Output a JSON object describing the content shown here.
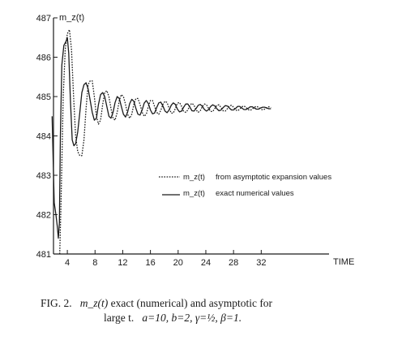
{
  "chart_data": {
    "type": "line",
    "ylabel": "m_z(t)",
    "xlabel": "TIME",
    "xlim": [
      2,
      35
    ],
    "ylim": [
      481,
      487
    ],
    "xticks": [
      4,
      8,
      12,
      16,
      20,
      24,
      28,
      32
    ],
    "yticks": [
      481,
      482,
      483,
      484,
      485,
      486,
      487
    ],
    "legend_position": "center-right",
    "series": [
      {
        "name": "m_z(t) from asymptotic expansion values",
        "style": "dotted",
        "x": [
          2.9,
          3.1,
          3.4,
          3.7,
          4.0,
          4.3,
          4.6,
          4.9,
          5.2,
          5.5,
          5.8,
          6.1,
          6.4,
          6.7,
          7.0,
          7.3,
          7.6,
          7.9,
          8.2,
          8.5,
          8.8,
          9.1,
          9.4,
          9.7,
          10.0,
          10.3,
          10.6,
          10.9,
          11.2,
          11.5,
          11.8,
          12.1,
          12.4,
          12.7,
          13.0,
          13.3,
          13.6,
          13.9,
          14.2,
          14.5,
          14.8,
          15.1,
          15.4,
          15.7,
          16.0,
          16.3,
          16.6,
          16.9,
          17.2,
          17.5,
          17.8,
          18.1,
          18.4,
          18.7,
          19.0,
          19.3,
          19.6,
          19.9,
          20.2,
          20.5,
          20.8,
          21.1,
          21.4,
          21.7,
          22.0,
          22.3,
          22.6,
          22.9,
          23.2,
          23.5,
          23.8,
          24.1,
          24.4,
          24.7,
          25.0,
          25.3,
          25.6,
          25.9,
          26.2,
          26.5,
          26.8,
          27.1,
          27.4,
          27.7,
          28.0,
          28.3,
          28.6,
          28.9,
          29.2,
          29.5,
          29.8,
          30.1,
          30.4,
          30.7,
          31.0,
          31.3,
          31.6,
          31.9,
          32.2,
          32.5,
          32.8,
          33.1,
          33.4
        ],
        "y": [
          481.0,
          482.4,
          485.0,
          486.2,
          486.6,
          486.7,
          486.2,
          485.0,
          484.0,
          483.6,
          483.5,
          483.5,
          483.9,
          484.7,
          485.3,
          485.4,
          485.4,
          485.0,
          484.5,
          484.3,
          484.4,
          484.8,
          485.1,
          485.15,
          485.0,
          484.7,
          484.45,
          484.4,
          484.6,
          484.9,
          485.05,
          485.0,
          484.8,
          484.55,
          484.45,
          484.55,
          484.8,
          484.95,
          484.95,
          484.8,
          484.6,
          484.5,
          484.55,
          484.75,
          484.9,
          484.9,
          484.75,
          484.6,
          484.55,
          484.65,
          484.8,
          484.88,
          484.85,
          484.7,
          484.58,
          484.58,
          484.7,
          484.83,
          484.85,
          484.75,
          484.62,
          484.6,
          484.66,
          484.78,
          484.83,
          484.78,
          484.66,
          484.6,
          484.64,
          484.75,
          484.81,
          484.79,
          484.7,
          484.62,
          484.62,
          484.7,
          484.78,
          484.79,
          484.72,
          484.64,
          484.63,
          484.69,
          484.76,
          484.78,
          484.73,
          484.66,
          484.64,
          484.68,
          484.74,
          484.76,
          484.73,
          484.67,
          484.65,
          484.68,
          484.73,
          484.75,
          484.73,
          484.69,
          484.66,
          484.68,
          484.72,
          484.74,
          484.72
        ]
      },
      {
        "name": "m_z(t) exact numerical values",
        "style": "solid",
        "x": [
          1.8,
          1.9,
          2.1,
          2.35,
          2.55,
          2.7,
          2.85,
          3.0,
          3.2,
          3.5,
          3.8,
          4.0,
          4.2,
          4.45,
          4.7,
          4.95,
          5.2,
          5.5,
          5.8,
          6.1,
          6.4,
          6.7,
          7.0,
          7.3,
          7.6,
          7.9,
          8.2,
          8.5,
          8.8,
          9.1,
          9.4,
          9.7,
          10.0,
          10.3,
          10.6,
          10.9,
          11.2,
          11.5,
          11.8,
          12.1,
          12.4,
          12.7,
          13.0,
          13.3,
          13.6,
          13.9,
          14.2,
          14.5,
          14.8,
          15.1,
          15.4,
          15.7,
          16.0,
          16.3,
          16.6,
          16.9,
          17.2,
          17.5,
          17.8,
          18.1,
          18.4,
          18.7,
          19.0,
          19.3,
          19.6,
          19.9,
          20.2,
          20.5,
          20.8,
          21.1,
          21.4,
          21.7,
          22.0,
          22.3,
          22.6,
          22.9,
          23.2,
          23.5,
          23.8,
          24.1,
          24.4,
          24.7,
          25.0,
          25.3,
          25.6,
          25.9,
          26.2,
          26.5,
          26.8,
          27.1,
          27.4,
          27.7,
          28.0,
          28.3,
          28.6,
          28.9,
          29.2,
          29.5,
          29.8,
          30.1,
          30.4,
          30.7,
          31.0,
          31.3,
          31.6,
          31.9,
          32.2,
          32.5,
          32.8,
          33.1,
          33.4
        ],
        "y": [
          484.5,
          483.8,
          482.3,
          482.0,
          481.7,
          481.4,
          481.8,
          484.0,
          485.8,
          486.3,
          486.4,
          486.5,
          486.1,
          484.9,
          483.9,
          483.75,
          483.8,
          484.1,
          484.6,
          485.1,
          485.3,
          485.35,
          485.2,
          484.9,
          484.6,
          484.4,
          484.45,
          484.8,
          485.05,
          485.1,
          485.0,
          484.75,
          484.5,
          484.45,
          484.6,
          484.85,
          485.0,
          484.95,
          484.75,
          484.55,
          484.48,
          484.6,
          484.82,
          484.93,
          484.88,
          484.7,
          484.55,
          484.53,
          484.66,
          484.83,
          484.9,
          484.82,
          484.66,
          484.56,
          484.58,
          484.72,
          484.84,
          484.86,
          484.76,
          484.63,
          484.59,
          484.66,
          484.78,
          484.84,
          484.8,
          484.68,
          484.61,
          484.63,
          484.73,
          484.81,
          484.81,
          484.73,
          484.64,
          484.63,
          484.7,
          484.78,
          484.8,
          484.75,
          484.67,
          484.63,
          484.67,
          484.75,
          484.79,
          484.76,
          484.69,
          484.64,
          484.66,
          484.72,
          484.77,
          484.76,
          484.71,
          484.66,
          484.66,
          484.7,
          484.75,
          484.75,
          484.71,
          484.67,
          484.67,
          484.7,
          484.74,
          484.74,
          484.71,
          484.68,
          484.68,
          484.71,
          484.73,
          484.73,
          484.71,
          484.69,
          484.69
        ]
      }
    ]
  },
  "legend": {
    "items": [
      {
        "symbol": "m_z(t)",
        "text": "from asymptotic expansion values"
      },
      {
        "symbol": "m_z(t)",
        "text": "exact numerical values"
      }
    ]
  },
  "caption": {
    "label": "FIG. 2.",
    "line1_symbol": "m_z(t)",
    "line1_text": "exact (numerical) and asymptotic for",
    "line2_lead": "large t.",
    "params": "a=10,  b=2,  γ=½,  β=1."
  }
}
